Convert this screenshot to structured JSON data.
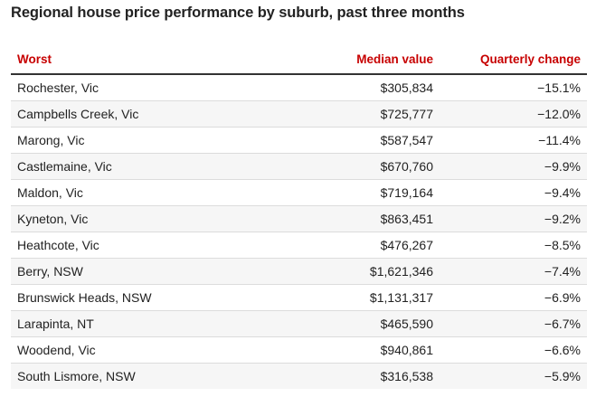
{
  "title": "Regional house price performance by suburb, past three months",
  "chart_data": {
    "type": "table",
    "title": "Regional house price performance by suburb, past three months",
    "columns": [
      "Worst",
      "Median value",
      "Quarterly change"
    ],
    "rows": [
      [
        "Rochester, Vic",
        "$305,834",
        "−15.1%"
      ],
      [
        "Campbells Creek, Vic",
        "$725,777",
        "−12.0%"
      ],
      [
        "Marong, Vic",
        "$587,547",
        "−11.4%"
      ],
      [
        "Castlemaine, Vic",
        "$670,760",
        "−9.9%"
      ],
      [
        "Maldon, Vic",
        "$719,164",
        "−9.4%"
      ],
      [
        "Kyneton, Vic",
        "$863,451",
        "−9.2%"
      ],
      [
        "Heathcote, Vic",
        "$476,267",
        "−8.5%"
      ],
      [
        "Berry, NSW",
        "$1,621,346",
        "−7.4%"
      ],
      [
        "Brunswick Heads, NSW",
        "$1,131,317",
        "−6.9%"
      ],
      [
        "Larapinta, NT",
        "$465,590",
        "−6.7%"
      ],
      [
        "Woodend, Vic",
        "$940,861",
        "−6.6%"
      ],
      [
        "South Lismore, NSW",
        "$316,538",
        "−5.9%"
      ]
    ]
  },
  "colors": {
    "header_text": "#c70000",
    "body_text": "#222222",
    "header_rule": "#333333",
    "row_alt": "#f6f6f6",
    "row_divider": "#dcdcdc"
  }
}
